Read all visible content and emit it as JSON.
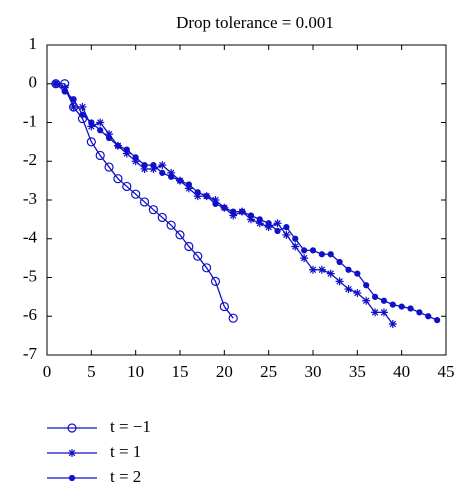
{
  "chart_data": {
    "type": "line",
    "title": "Drop tolerance = 0.001",
    "x": [
      1,
      2,
      3,
      4,
      5,
      6,
      7,
      8,
      9,
      10,
      11,
      12,
      13,
      14,
      15,
      16,
      17,
      18,
      19,
      20,
      21,
      22,
      23,
      24,
      25,
      26,
      27,
      28,
      29,
      30,
      31,
      32,
      33,
      34,
      35,
      36,
      37,
      38,
      39,
      40,
      41,
      42,
      43,
      44
    ],
    "series": [
      {
        "name": "t = −1",
        "color": "#1010c8",
        "marker": "circle",
        "values": [
          0,
          0,
          -0.6,
          -0.9,
          -1.5,
          -1.85,
          -2.15,
          -2.45,
          -2.65,
          -2.85,
          -3.05,
          -3.25,
          -3.45,
          -3.65,
          -3.9,
          -4.2,
          -4.45,
          -4.75,
          -5.1,
          -5.75,
          -6.05,
          null,
          null,
          null,
          null,
          null,
          null,
          null,
          null,
          null,
          null,
          null,
          null,
          null,
          null,
          null,
          null,
          null,
          null,
          null,
          null,
          null,
          null,
          null
        ]
      },
      {
        "name": "t = 1",
        "color": "#1010c8",
        "marker": "asterisk",
        "values": [
          0,
          -0.1,
          -0.6,
          -0.6,
          -1.1,
          -1.0,
          -1.3,
          -1.6,
          -1.8,
          -2.0,
          -2.2,
          -2.2,
          -2.1,
          -2.3,
          -2.5,
          -2.7,
          -2.9,
          -2.9,
          -3.0,
          -3.2,
          -3.4,
          -3.3,
          -3.5,
          -3.6,
          -3.7,
          -3.6,
          -3.9,
          -4.2,
          -4.5,
          -4.8,
          -4.8,
          -4.9,
          -5.1,
          -5.3,
          -5.4,
          -5.6,
          -5.9,
          -5.9,
          -6.2,
          null,
          null,
          null,
          null,
          null
        ]
      },
      {
        "name": "t = 2",
        "color": "#1010c8",
        "marker": "dot",
        "values": [
          0,
          -0.2,
          -0.4,
          -0.8,
          -1.0,
          -1.2,
          -1.4,
          -1.6,
          -1.7,
          -1.9,
          -2.1,
          -2.1,
          -2.3,
          -2.4,
          -2.5,
          -2.6,
          -2.8,
          -2.9,
          -3.1,
          -3.2,
          -3.3,
          -3.3,
          -3.4,
          -3.5,
          -3.6,
          -3.8,
          -3.7,
          -4.0,
          -4.3,
          -4.3,
          -4.4,
          -4.4,
          -4.6,
          -4.8,
          -4.9,
          -5.2,
          -5.5,
          -5.6,
          -5.7,
          -5.75,
          -5.8,
          -5.9,
          -6.0,
          -6.1
        ]
      }
    ],
    "xlim": [
      0,
      45
    ],
    "xticks": [
      0,
      5,
      10,
      15,
      20,
      25,
      30,
      35,
      40,
      45
    ],
    "ylim": [
      -7,
      1
    ],
    "yticks": [
      1,
      0,
      -1,
      -2,
      -3,
      -4,
      -5,
      -6,
      -7
    ],
    "grid": false,
    "legend": "below"
  }
}
